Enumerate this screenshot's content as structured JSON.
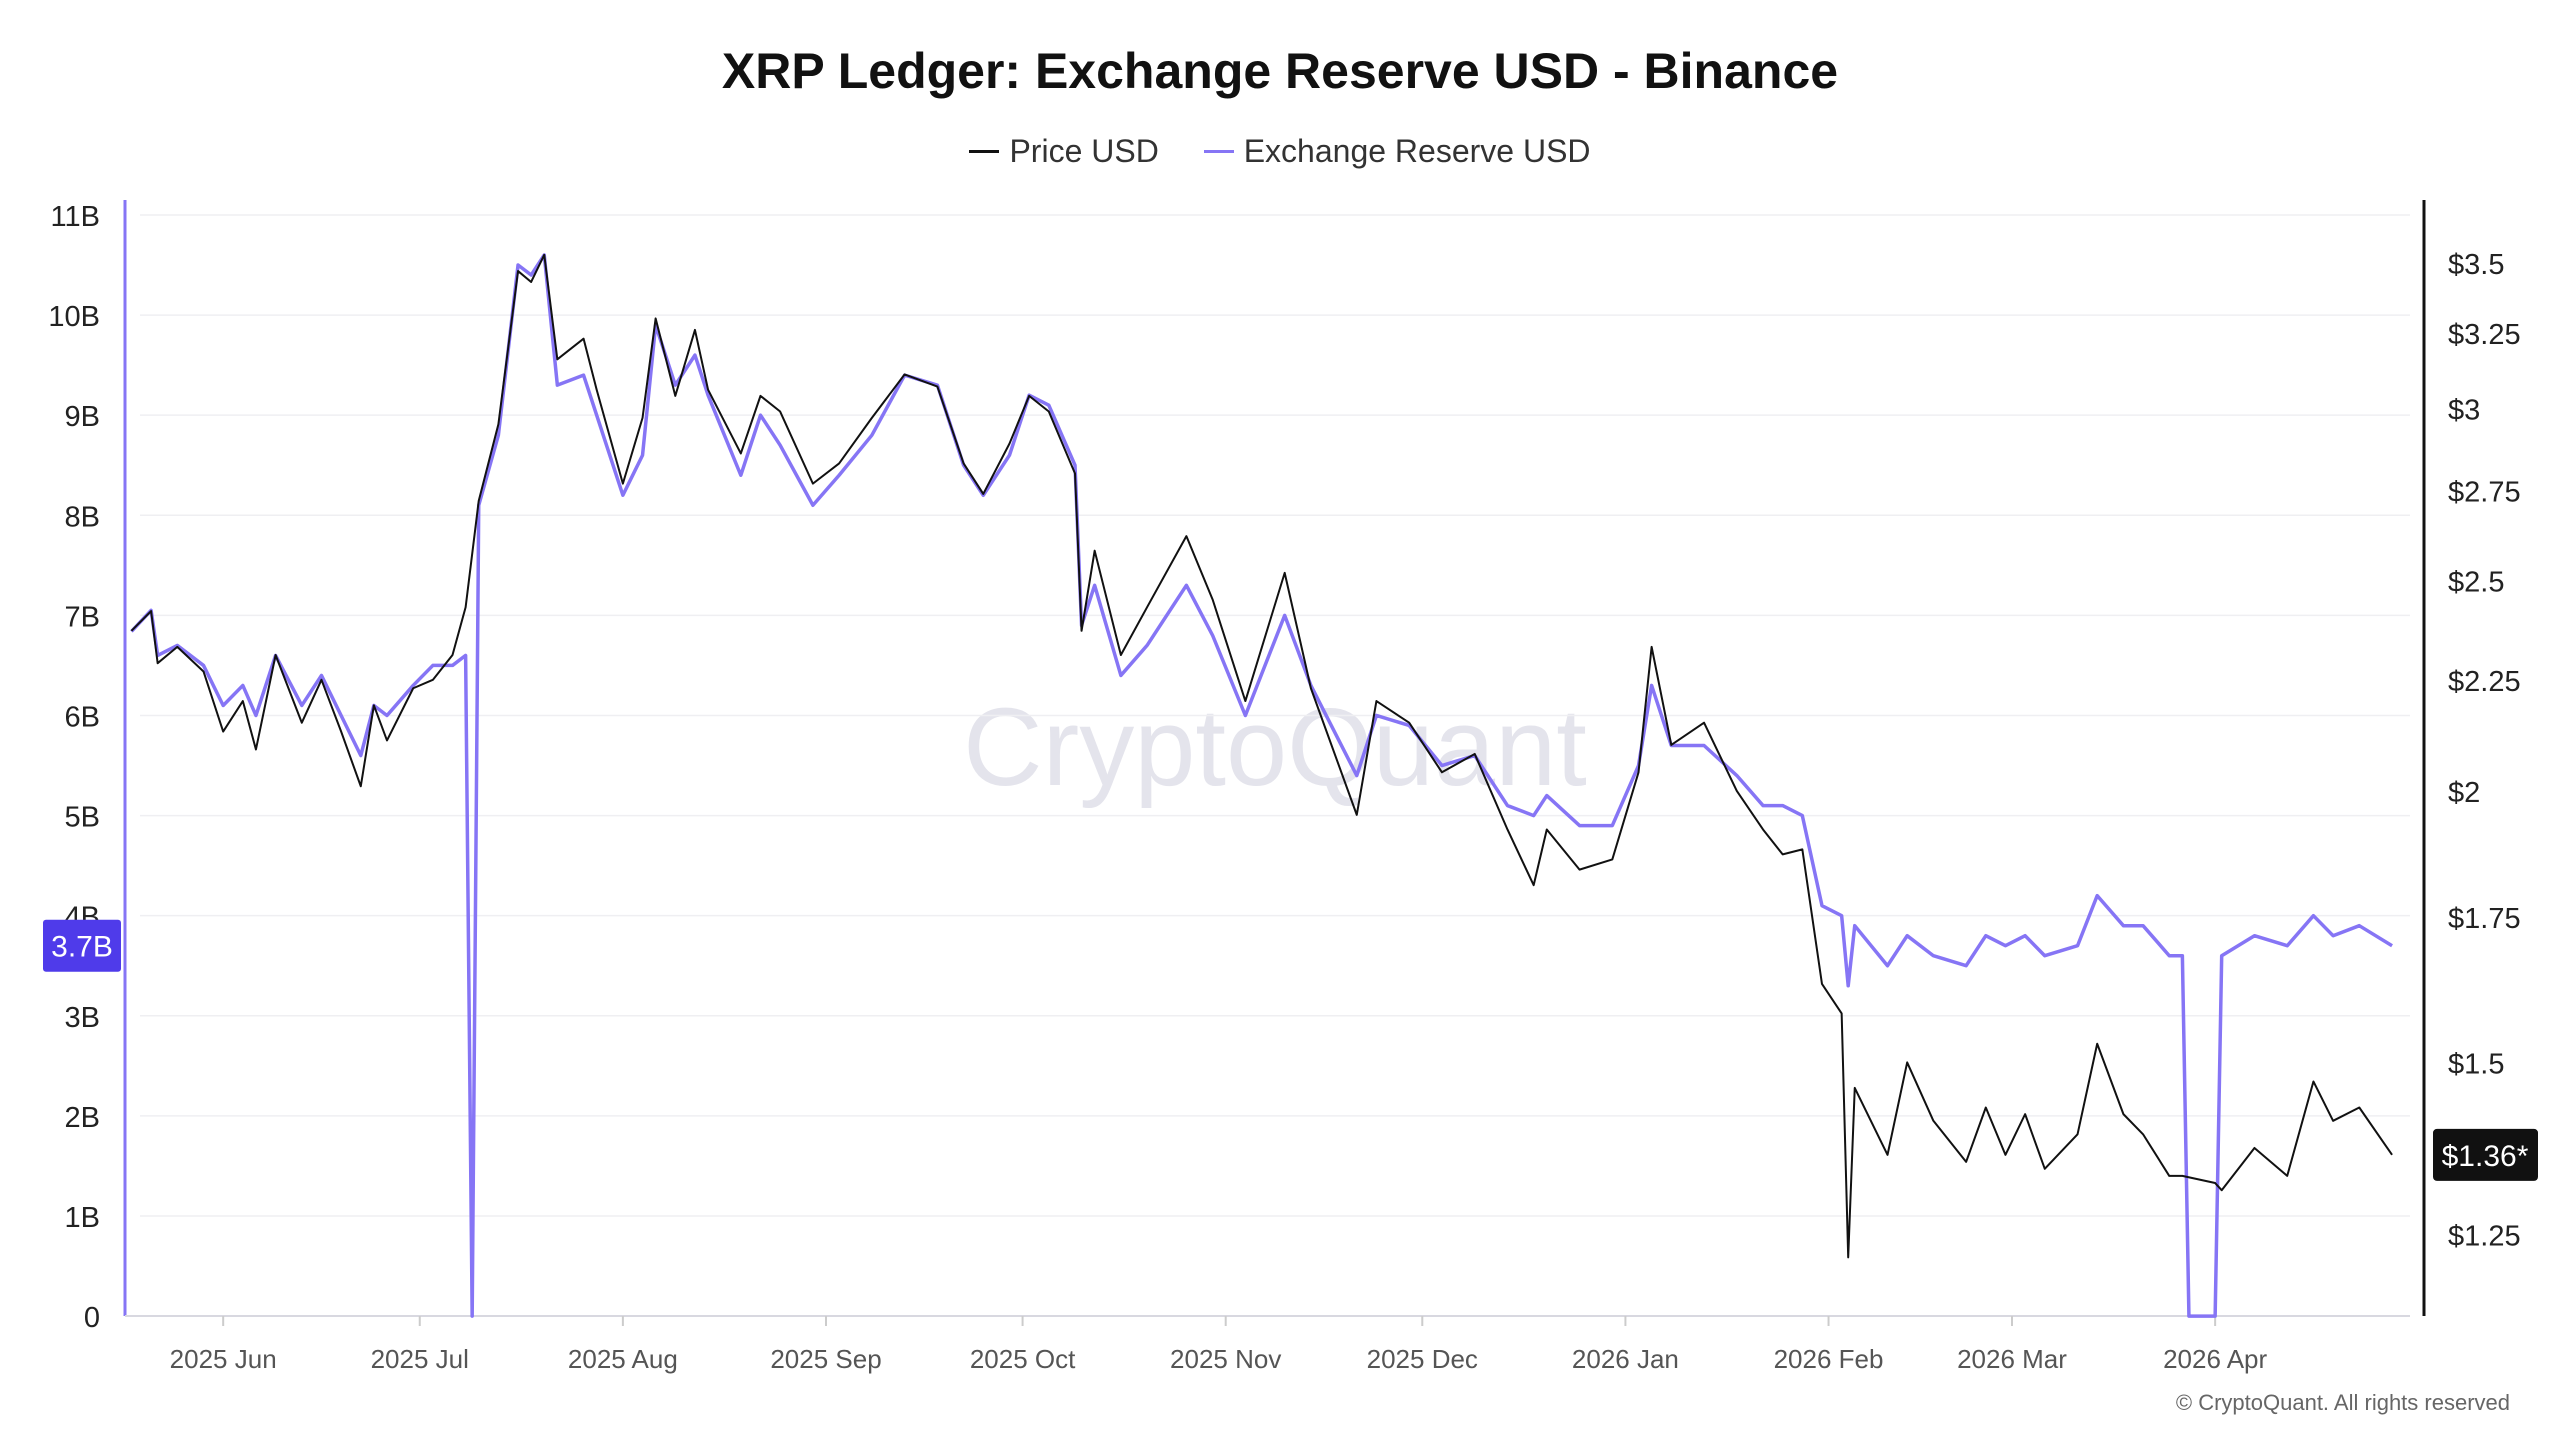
{
  "chart_data": {
    "type": "line",
    "title": "XRP Ledger: Exchange Reserve USD - Binance",
    "legend_placement": "top-center",
    "grid": true,
    "x_ticks": [
      "2025 Jun",
      "2025 Jul",
      "2025 Aug",
      "2025 Sep",
      "2025 Oct",
      "2025 Nov",
      "2025 Dec",
      "2026 Jan",
      "2026 Feb",
      "2026 Mar",
      "2026 Apr"
    ],
    "x_tick_dates": [
      "2025-06-01",
      "2025-07-01",
      "2025-08-01",
      "2025-09-01",
      "2025-10-01",
      "2025-11-01",
      "2025-12-01",
      "2026-01-01",
      "2026-02-01",
      "2026-03-01",
      "2026-04-01"
    ],
    "left_axis": {
      "scale": "linear",
      "range": [
        0,
        11
      ],
      "ticks": [
        "0",
        "1B",
        "2B",
        "3B",
        "4B",
        "5B",
        "6B",
        "7B",
        "8B",
        "9B",
        "10B",
        "11B"
      ],
      "tick_values": [
        0,
        1,
        2,
        3,
        4,
        5,
        6,
        7,
        8,
        9,
        10,
        11
      ]
    },
    "right_axis": {
      "scale": "log",
      "ticks": [
        "$1.25",
        "$1.5",
        "$1.75",
        "$2",
        "$2.25",
        "$2.5",
        "$2.75",
        "$3",
        "$3.25",
        "$3.5"
      ],
      "tick_values": [
        1.25,
        1.5,
        1.75,
        2,
        2.25,
        2.5,
        2.75,
        3,
        3.25,
        3.5
      ]
    },
    "last_values": {
      "reserve": "3.7B",
      "price": "$1.36*"
    },
    "series": [
      {
        "name": "Price USD",
        "color": "#111111",
        "axis": "right",
        "points": [
          [
            "2025-05-18",
            2.37
          ],
          [
            "2025-05-21",
            2.42
          ],
          [
            "2025-05-22",
            2.29
          ],
          [
            "2025-05-25",
            2.33
          ],
          [
            "2025-05-29",
            2.27
          ],
          [
            "2025-06-01",
            2.13
          ],
          [
            "2025-06-04",
            2.2
          ],
          [
            "2025-06-06",
            2.09
          ],
          [
            "2025-06-09",
            2.31
          ],
          [
            "2025-06-13",
            2.15
          ],
          [
            "2025-06-16",
            2.25
          ],
          [
            "2025-06-19",
            2.13
          ],
          [
            "2025-06-22",
            2.01
          ],
          [
            "2025-06-24",
            2.19
          ],
          [
            "2025-06-26",
            2.11
          ],
          [
            "2025-06-30",
            2.23
          ],
          [
            "2025-07-03",
            2.25
          ],
          [
            "2025-07-06",
            2.31
          ],
          [
            "2025-07-08",
            2.43
          ],
          [
            "2025-07-10",
            2.72
          ],
          [
            "2025-07-13",
            2.95
          ],
          [
            "2025-07-16",
            3.47
          ],
          [
            "2025-07-18",
            3.43
          ],
          [
            "2025-07-20",
            3.53
          ],
          [
            "2025-07-22",
            3.16
          ],
          [
            "2025-07-26",
            3.23
          ],
          [
            "2025-07-28",
            3.06
          ],
          [
            "2025-08-01",
            2.77
          ],
          [
            "2025-08-04",
            2.97
          ],
          [
            "2025-08-06",
            3.3
          ],
          [
            "2025-08-09",
            3.04
          ],
          [
            "2025-08-12",
            3.26
          ],
          [
            "2025-08-14",
            3.06
          ],
          [
            "2025-08-19",
            2.86
          ],
          [
            "2025-08-22",
            3.04
          ],
          [
            "2025-08-25",
            2.99
          ],
          [
            "2025-08-30",
            2.77
          ],
          [
            "2025-09-03",
            2.83
          ],
          [
            "2025-09-08",
            2.97
          ],
          [
            "2025-09-13",
            3.11
          ],
          [
            "2025-09-18",
            3.07
          ],
          [
            "2025-09-22",
            2.83
          ],
          [
            "2025-09-25",
            2.74
          ],
          [
            "2025-09-29",
            2.89
          ],
          [
            "2025-10-02",
            3.04
          ],
          [
            "2025-10-05",
            2.99
          ],
          [
            "2025-10-09",
            2.8
          ],
          [
            "2025-10-10",
            2.37
          ],
          [
            "2025-10-12",
            2.58
          ],
          [
            "2025-10-16",
            2.31
          ],
          [
            "2025-10-20",
            2.43
          ],
          [
            "2025-10-26",
            2.62
          ],
          [
            "2025-10-30",
            2.45
          ],
          [
            "2025-11-04",
            2.2
          ],
          [
            "2025-11-10",
            2.52
          ],
          [
            "2025-11-14",
            2.23
          ],
          [
            "2025-11-21",
            1.95
          ],
          [
            "2025-11-24",
            2.2
          ],
          [
            "2025-11-29",
            2.15
          ],
          [
            "2025-12-04",
            2.04
          ],
          [
            "2025-12-09",
            2.08
          ],
          [
            "2025-12-14",
            1.92
          ],
          [
            "2025-12-18",
            1.81
          ],
          [
            "2025-12-20",
            1.92
          ],
          [
            "2025-12-25",
            1.84
          ],
          [
            "2025-12-30",
            1.86
          ],
          [
            "2026-01-03",
            2.04
          ],
          [
            "2026-01-05",
            2.33
          ],
          [
            "2026-01-08",
            2.1
          ],
          [
            "2026-01-13",
            2.15
          ],
          [
            "2026-01-18",
            2.0
          ],
          [
            "2026-01-22",
            1.92
          ],
          [
            "2026-01-25",
            1.87
          ],
          [
            "2026-01-28",
            1.88
          ],
          [
            "2026-01-31",
            1.63
          ],
          [
            "2026-02-03",
            1.58
          ],
          [
            "2026-02-04",
            1.22
          ],
          [
            "2026-02-05",
            1.46
          ],
          [
            "2026-02-10",
            1.36
          ],
          [
            "2026-02-13",
            1.5
          ],
          [
            "2026-02-17",
            1.41
          ],
          [
            "2026-02-22",
            1.35
          ],
          [
            "2026-02-25",
            1.43
          ],
          [
            "2026-02-28",
            1.36
          ],
          [
            "2026-03-03",
            1.42
          ],
          [
            "2026-03-06",
            1.34
          ],
          [
            "2026-03-11",
            1.39
          ],
          [
            "2026-03-14",
            1.53
          ],
          [
            "2026-03-18",
            1.42
          ],
          [
            "2026-03-21",
            1.39
          ],
          [
            "2026-03-25",
            1.33
          ],
          [
            "2026-03-27",
            1.33
          ],
          [
            "2026-04-01",
            1.32
          ],
          [
            "2026-04-02",
            1.31
          ],
          [
            "2026-04-07",
            1.37
          ],
          [
            "2026-04-12",
            1.33
          ],
          [
            "2026-04-16",
            1.47
          ],
          [
            "2026-04-19",
            1.41
          ],
          [
            "2026-04-23",
            1.43
          ],
          [
            "2026-04-28",
            1.36
          ]
        ]
      },
      {
        "name": "Exchange Reserve USD",
        "color": "#8675f5",
        "axis": "left",
        "points": [
          [
            "2025-05-18",
            6.84
          ],
          [
            "2025-05-21",
            7.05
          ],
          [
            "2025-05-22",
            6.6
          ],
          [
            "2025-05-25",
            6.7
          ],
          [
            "2025-05-29",
            6.5
          ],
          [
            "2025-06-01",
            6.1
          ],
          [
            "2025-06-04",
            6.3
          ],
          [
            "2025-06-06",
            6.0
          ],
          [
            "2025-06-09",
            6.6
          ],
          [
            "2025-06-13",
            6.1
          ],
          [
            "2025-06-16",
            6.4
          ],
          [
            "2025-06-19",
            6.0
          ],
          [
            "2025-06-22",
            5.6
          ],
          [
            "2025-06-24",
            6.1
          ],
          [
            "2025-06-26",
            6.0
          ],
          [
            "2025-06-30",
            6.3
          ],
          [
            "2025-07-03",
            6.5
          ],
          [
            "2025-07-06",
            6.5
          ],
          [
            "2025-07-08",
            6.6
          ],
          [
            "2025-07-09",
            0
          ],
          [
            "2025-07-10",
            8.1
          ],
          [
            "2025-07-13",
            8.8
          ],
          [
            "2025-07-16",
            10.5
          ],
          [
            "2025-07-18",
            10.4
          ],
          [
            "2025-07-20",
            10.6
          ],
          [
            "2025-07-22",
            9.3
          ],
          [
            "2025-07-26",
            9.4
          ],
          [
            "2025-07-28",
            9.0
          ],
          [
            "2025-08-01",
            8.2
          ],
          [
            "2025-08-04",
            8.6
          ],
          [
            "2025-08-06",
            9.9
          ],
          [
            "2025-08-09",
            9.3
          ],
          [
            "2025-08-12",
            9.6
          ],
          [
            "2025-08-14",
            9.2
          ],
          [
            "2025-08-19",
            8.4
          ],
          [
            "2025-08-22",
            9.0
          ],
          [
            "2025-08-25",
            8.7
          ],
          [
            "2025-08-30",
            8.1
          ],
          [
            "2025-09-03",
            8.4
          ],
          [
            "2025-09-08",
            8.8
          ],
          [
            "2025-09-13",
            9.4
          ],
          [
            "2025-09-18",
            9.3
          ],
          [
            "2025-09-22",
            8.5
          ],
          [
            "2025-09-25",
            8.2
          ],
          [
            "2025-09-29",
            8.6
          ],
          [
            "2025-10-02",
            9.2
          ],
          [
            "2025-10-05",
            9.1
          ],
          [
            "2025-10-09",
            8.5
          ],
          [
            "2025-10-10",
            6.9
          ],
          [
            "2025-10-12",
            7.3
          ],
          [
            "2025-10-16",
            6.4
          ],
          [
            "2025-10-20",
            6.7
          ],
          [
            "2025-10-26",
            7.3
          ],
          [
            "2025-10-30",
            6.8
          ],
          [
            "2025-11-04",
            6.0
          ],
          [
            "2025-11-10",
            7.0
          ],
          [
            "2025-11-14",
            6.3
          ],
          [
            "2025-11-21",
            5.4
          ],
          [
            "2025-11-24",
            6.0
          ],
          [
            "2025-11-29",
            5.9
          ],
          [
            "2025-12-04",
            5.5
          ],
          [
            "2025-12-09",
            5.6
          ],
          [
            "2025-12-14",
            5.1
          ],
          [
            "2025-12-18",
            5.0
          ],
          [
            "2025-12-20",
            5.2
          ],
          [
            "2025-12-25",
            4.9
          ],
          [
            "2025-12-30",
            4.9
          ],
          [
            "2026-01-03",
            5.5
          ],
          [
            "2026-01-05",
            6.3
          ],
          [
            "2026-01-08",
            5.7
          ],
          [
            "2026-01-13",
            5.7
          ],
          [
            "2026-01-18",
            5.4
          ],
          [
            "2026-01-22",
            5.1
          ],
          [
            "2026-01-25",
            5.1
          ],
          [
            "2026-01-28",
            5.0
          ],
          [
            "2026-01-31",
            4.1
          ],
          [
            "2026-02-03",
            4.0
          ],
          [
            "2026-02-04",
            3.3
          ],
          [
            "2026-02-05",
            3.9
          ],
          [
            "2026-02-10",
            3.5
          ],
          [
            "2026-02-13",
            3.8
          ],
          [
            "2026-02-17",
            3.6
          ],
          [
            "2026-02-22",
            3.5
          ],
          [
            "2026-02-25",
            3.8
          ],
          [
            "2026-02-28",
            3.7
          ],
          [
            "2026-03-03",
            3.8
          ],
          [
            "2026-03-06",
            3.6
          ],
          [
            "2026-03-11",
            3.7
          ],
          [
            "2026-03-14",
            4.2
          ],
          [
            "2026-03-18",
            3.9
          ],
          [
            "2026-03-21",
            3.9
          ],
          [
            "2026-03-25",
            3.6
          ],
          [
            "2026-03-27",
            3.6
          ],
          [
            "2026-03-28",
            0
          ],
          [
            "2026-04-01",
            0
          ],
          [
            "2026-04-02",
            3.6
          ],
          [
            "2026-04-07",
            3.8
          ],
          [
            "2026-04-12",
            3.7
          ],
          [
            "2026-04-16",
            4.0
          ],
          [
            "2026-04-19",
            3.8
          ],
          [
            "2026-04-23",
            3.9
          ],
          [
            "2026-04-28",
            3.7
          ]
        ]
      }
    ]
  },
  "colors": {
    "price": "#111111",
    "reserve": "#8675f5",
    "reserve_badge": "#4f3bea",
    "price_badge": "#111111"
  },
  "watermark": "CryptoQuant",
  "copyright": "© CryptoQuant. All rights reserved"
}
